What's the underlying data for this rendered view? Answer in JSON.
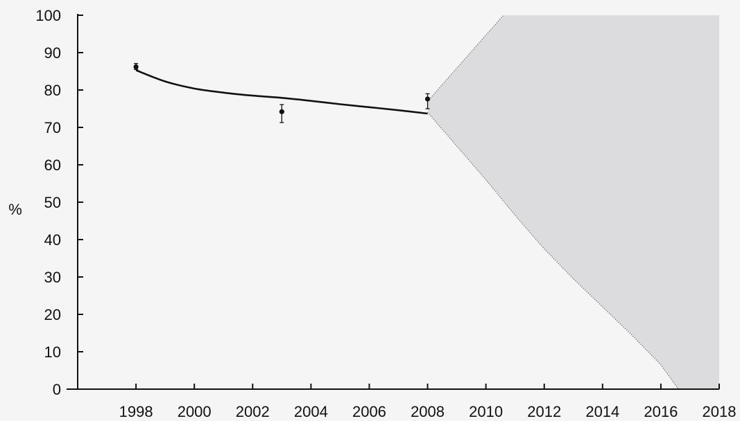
{
  "chart_data": {
    "type": "line",
    "title": "",
    "xlabel": "",
    "ylabel": "%",
    "xlim": [
      1996,
      2018
    ],
    "ylim": [
      0,
      100
    ],
    "x_ticks": [
      1998,
      2000,
      2002,
      2004,
      2006,
      2008,
      2010,
      2012,
      2014,
      2016,
      2018
    ],
    "y_ticks": [
      0,
      10,
      20,
      30,
      40,
      50,
      60,
      70,
      80,
      90,
      100
    ],
    "grid": false,
    "legend": "none",
    "series": [
      {
        "kind": "trend-line",
        "color": "#111111",
        "x": [
          1998,
          1999,
          2000,
          2001,
          2002,
          2003,
          2004,
          2005,
          2006,
          2007,
          2008
        ],
        "y": [
          85.3,
          82.3,
          80.4,
          79.3,
          78.5,
          77.9,
          77.1,
          76.2,
          75.4,
          74.6,
          73.7
        ]
      },
      {
        "kind": "observations",
        "color": "#111111",
        "points": [
          {
            "x": 1998,
            "y": 86.2,
            "err_low": 85.5,
            "err_high": 87.1
          },
          {
            "x": 2003,
            "y": 74.2,
            "err_low": 71.3,
            "err_high": 76.1
          },
          {
            "x": 2008,
            "y": 77.6,
            "err_low": 75.0,
            "err_high": 79.0
          }
        ]
      },
      {
        "kind": "projection-band",
        "fill": "#dcdcde",
        "upper": {
          "x": [
            2008,
            2010.6,
            2018
          ],
          "y": [
            77,
            100,
            100
          ]
        },
        "lower": {
          "x": [
            2008,
            2009,
            2010,
            2011,
            2012,
            2013,
            2014,
            2015,
            2016,
            2016.6,
            2018
          ],
          "y": [
            74,
            65,
            56,
            46.5,
            37.5,
            29.5,
            22,
            14.5,
            6.5,
            0,
            0
          ]
        }
      }
    ]
  }
}
